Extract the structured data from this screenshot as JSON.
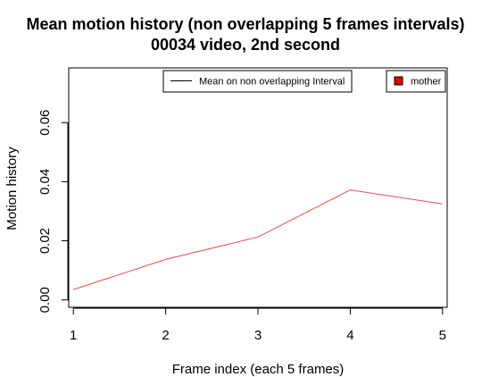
{
  "chart_data": {
    "type": "line",
    "title": "Mean motion history (non overlapping 5 frames intervals)",
    "subtitle": "00034 video, 2nd second",
    "xlabel": "Frame index (each 5 frames)",
    "ylabel": "Motion history",
    "x": [
      1,
      2,
      3,
      4,
      5
    ],
    "xticks": [
      "1",
      "2",
      "3",
      "4",
      "5"
    ],
    "yticks": [
      "0.00",
      "0.02",
      "0.04",
      "0.06"
    ],
    "ytick_values": [
      0.0,
      0.02,
      0.04,
      0.06
    ],
    "xlim": [
      0.95,
      5.05
    ],
    "ylim": [
      -0.0025,
      0.0785
    ],
    "series": [
      {
        "name": "mother",
        "color": "#ef4a4a",
        "values": [
          0.0035,
          0.0137,
          0.0213,
          0.0372,
          0.0325
        ]
      }
    ],
    "legends": [
      {
        "label": "Mean on non overlapping Interval",
        "symbol": "line",
        "color": "#000000"
      },
      {
        "label": "mother",
        "symbol": "box",
        "color": "#e8000b"
      }
    ],
    "grid": false
  }
}
